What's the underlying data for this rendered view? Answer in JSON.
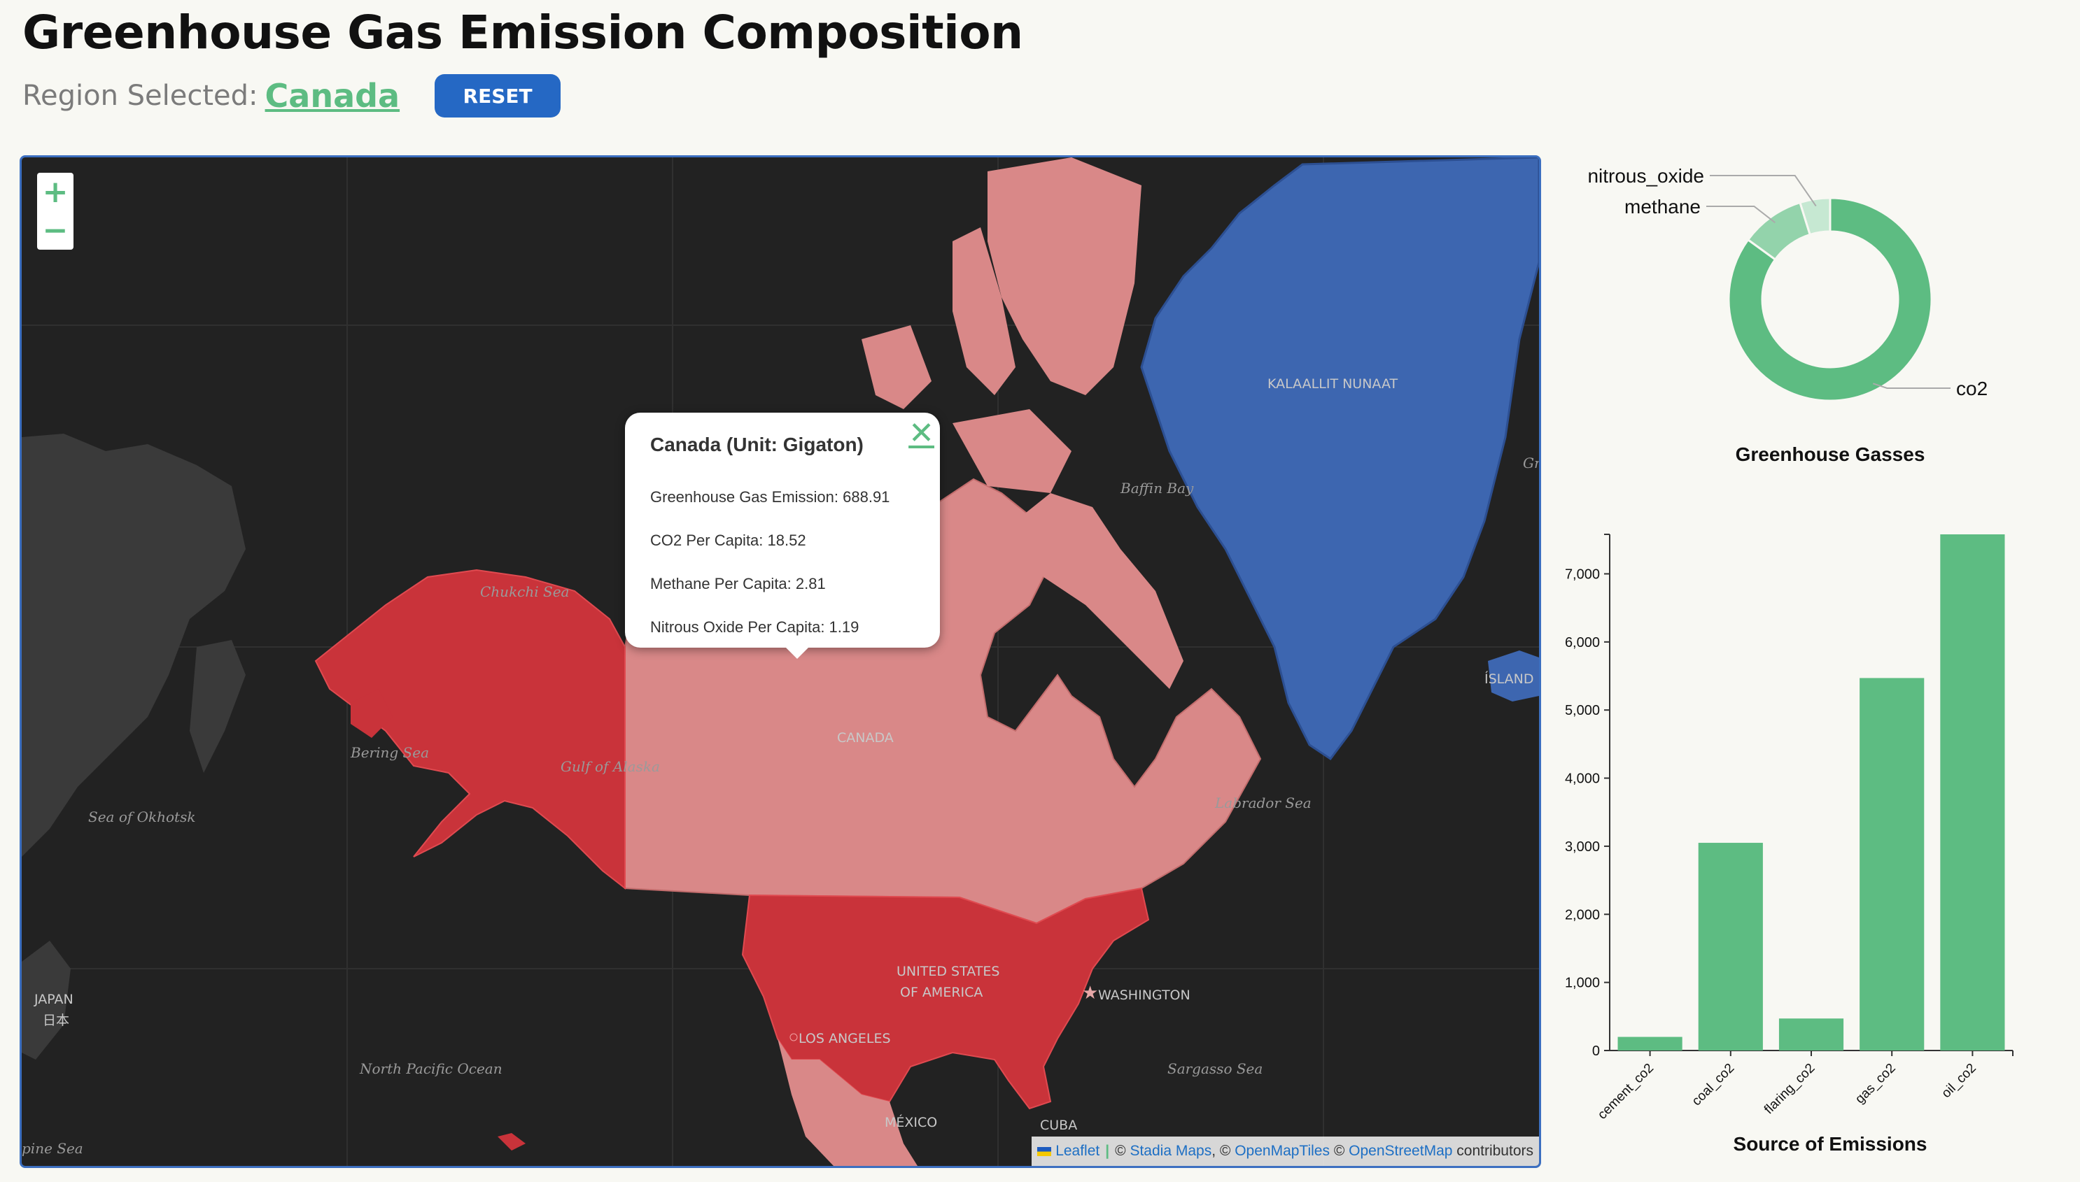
{
  "header": {
    "title": "Greenhouse Gas Emission Composition",
    "region_label": "Region Selected:",
    "region_value": "Canada",
    "reset_label": "RESET"
  },
  "map": {
    "zoom_in": "+",
    "zoom_out": "−",
    "labels": {
      "chukchi": "Chukchi Sea",
      "bering": "Bering Sea",
      "gulf_alaska": "Gulf of Alaska",
      "okhotsk": "Sea of Okhotsk",
      "canada": "CANADA",
      "baffin": "Baffin Bay",
      "labrador": "Labrador Sea",
      "greenland": "KALAALLIT NUNAAT",
      "island": "ÍSLAND",
      "usa1": "UNITED STATES",
      "usa2": "OF AMERICA",
      "washington": "WASHINGTON",
      "los_angeles": "LOS ANGELES",
      "japan": "JAPAN",
      "japan_native": "日本",
      "north_pacific": "North Pacific Ocean",
      "sargasso": "Sargasso Sea",
      "mexico": "MÉXICO",
      "cuba": "CUBA",
      "phine_sea": "pine Sea",
      "gr_edge": "Gr"
    },
    "colors": {
      "selected": "#c9333a",
      "region": "#d98888",
      "greenland": "#3d66b0",
      "land": "#3a3a3a",
      "water": "#222222"
    },
    "popup": {
      "close": "✕",
      "title": "Canada (Unit: Gigaton)",
      "lines": [
        "Greenhouse Gas Emission: 688.91",
        "CO2 Per Capita: 18.52",
        "Methane Per Capita: 2.81",
        "Nitrous Oxide Per Capita: 1.19"
      ]
    },
    "attribution": {
      "leaflet": "Leaflet",
      "sep1": "|",
      "copy1": "©",
      "stadia": "Stadia Maps",
      "copy2": ", ©",
      "openmaptiles": "OpenMapTiles",
      "copy3": "©",
      "osm": "OpenStreetMap",
      "contributors": "contributors"
    }
  },
  "chart_data": [
    {
      "type": "pie",
      "title": "Greenhouse Gasses",
      "labels": [
        "co2",
        "methane",
        "nitrous_oxide"
      ],
      "values": [
        85.0,
        10.2,
        4.8
      ],
      "colors": [
        "#5dbc82",
        "#93d3ab",
        "#c6e8d2"
      ]
    },
    {
      "type": "bar",
      "title": "Source of Emissions",
      "categories": [
        "cement_co2",
        "coal_co2",
        "flaring_co2",
        "gas_co2",
        "oil_co2"
      ],
      "values": [
        200,
        3050,
        470,
        5470,
        7580
      ],
      "ylim": [
        0,
        7580
      ],
      "yticks": [
        0,
        1000,
        2000,
        3000,
        4000,
        5000,
        6000,
        7000
      ],
      "ytick_labels": [
        "0",
        "1,000",
        "2,000",
        "3,000",
        "4,000",
        "5,000",
        "6,000",
        "7,000"
      ],
      "color": "#5dbc82"
    }
  ]
}
